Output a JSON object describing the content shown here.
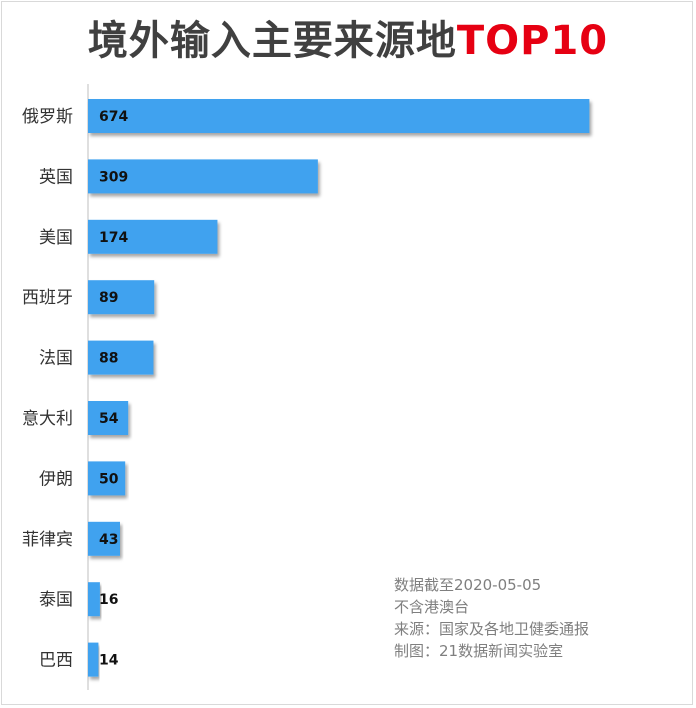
{
  "chart_data": {
    "type": "bar",
    "orientation": "horizontal",
    "title": "境外输入主要来源地",
    "title_highlight": "TOP10",
    "categories": [
      "俄罗斯",
      "英国",
      "美国",
      "西班牙",
      "法国",
      "意大利",
      "伊朗",
      "菲律宾",
      "泰国",
      "巴西"
    ],
    "values": [
      674,
      309,
      174,
      89,
      88,
      54,
      50,
      43,
      16,
      14
    ],
    "xlim": [
      0,
      820
    ],
    "grid": false,
    "bar_color": "#3fa2ef",
    "title_color": "#404040",
    "highlight_color": "#e60012"
  },
  "notes": [
    "数据截至2020-05-05",
    "不含港澳台",
    "来源：国家及各地卫健委通报",
    "制图：21数据新闻实验室"
  ]
}
